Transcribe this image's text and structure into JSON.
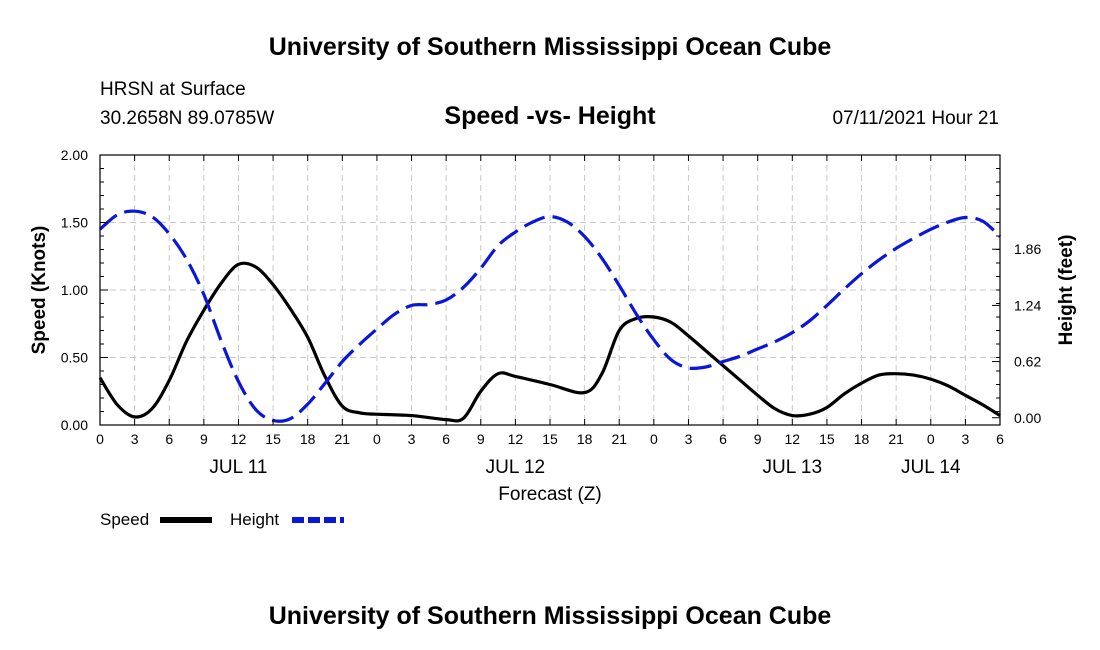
{
  "page": {
    "title": "University of Southern Mississippi Ocean Cube",
    "footer": "University of Southern Mississippi Ocean Cube"
  },
  "header": {
    "station": "HRSN at Surface",
    "coords": "30.2658N  89.0785W",
    "datetime": "07/11/2021 Hour 21"
  },
  "chart_data": {
    "type": "line",
    "title": "Speed -vs- Height",
    "xlabel": "Forecast (Z)",
    "ylabel_left": "Speed (Knots)",
    "ylabel_right": "Height (feet)",
    "x_unit": "hours since 07/11 00Z",
    "xlim": [
      0,
      78
    ],
    "ylim_left": [
      0,
      2.0
    ],
    "ylim_right": [
      -0.08,
      2.9
    ],
    "left_ticks": [
      "0.00",
      "0.50",
      "1.00",
      "1.50",
      "2.00"
    ],
    "right_ticks": [
      "0.00",
      "0.62",
      "1.24",
      "1.86"
    ],
    "x_tick_labels": [
      "0",
      "3",
      "6",
      "9",
      "12",
      "15",
      "18",
      "21",
      "0",
      "3",
      "6",
      "9",
      "12",
      "15",
      "18",
      "21",
      "0",
      "3",
      "6",
      "9",
      "12",
      "15",
      "18",
      "21",
      "0",
      "3",
      "6"
    ],
    "date_labels": [
      {
        "label": "JUL 11",
        "hour": 12
      },
      {
        "label": "JUL 12",
        "hour": 36
      },
      {
        "label": "JUL 13",
        "hour": 60
      },
      {
        "label": "JUL 14",
        "hour": 72
      }
    ],
    "grid": true,
    "series": [
      {
        "name": "Speed",
        "axis": "left",
        "color": "#000000",
        "dash": "solid",
        "x": [
          0,
          1.5,
          3,
          4.5,
          6,
          7.5,
          9,
          10.5,
          12,
          13.5,
          15,
          16.5,
          18,
          19.5,
          21,
          22.5,
          24,
          27,
          30,
          31.5,
          33,
          34.5,
          36,
          39,
          42,
          43.5,
          45,
          46.5,
          48,
          49.5,
          51,
          52.5,
          54,
          55.5,
          57,
          58.5,
          60,
          61.5,
          63,
          64.5,
          66,
          67.5,
          69,
          70.5,
          72,
          73.5,
          75,
          76.5,
          78
        ],
        "y": [
          0.35,
          0.15,
          0.06,
          0.12,
          0.33,
          0.62,
          0.85,
          1.05,
          1.19,
          1.17,
          1.04,
          0.86,
          0.65,
          0.36,
          0.14,
          0.09,
          0.08,
          0.07,
          0.04,
          0.05,
          0.25,
          0.38,
          0.36,
          0.3,
          0.24,
          0.38,
          0.7,
          0.79,
          0.8,
          0.76,
          0.66,
          0.55,
          0.44,
          0.33,
          0.22,
          0.12,
          0.07,
          0.08,
          0.13,
          0.23,
          0.31,
          0.37,
          0.38,
          0.37,
          0.34,
          0.29,
          0.22,
          0.15,
          0.07
        ]
      },
      {
        "name": "Height",
        "axis": "right",
        "color": "#0b17d8",
        "dash": "dashed",
        "x": [
          0,
          1.5,
          3,
          4.5,
          6,
          7.5,
          9,
          10.5,
          12,
          13.5,
          15,
          16.5,
          18,
          19.5,
          21,
          22.5,
          24,
          25.5,
          27,
          28.5,
          30,
          31.5,
          33,
          34.5,
          36,
          37.5,
          39,
          40.5,
          42,
          43.5,
          45,
          46.5,
          48,
          49.5,
          51,
          52.5,
          54,
          55.5,
          57,
          58.5,
          60,
          61.5,
          63,
          64.5,
          66,
          67.5,
          69,
          70.5,
          72,
          73.5,
          75,
          76.5,
          78
        ],
        "y": [
          2.08,
          2.24,
          2.28,
          2.22,
          2.03,
          1.75,
          1.36,
          0.85,
          0.4,
          0.09,
          -0.03,
          -0.01,
          0.15,
          0.38,
          0.62,
          0.81,
          0.98,
          1.14,
          1.24,
          1.25,
          1.3,
          1.44,
          1.65,
          1.9,
          2.05,
          2.16,
          2.22,
          2.16,
          2.0,
          1.76,
          1.46,
          1.14,
          0.86,
          0.64,
          0.55,
          0.56,
          0.62,
          0.68,
          0.76,
          0.84,
          0.94,
          1.07,
          1.24,
          1.42,
          1.59,
          1.74,
          1.87,
          1.98,
          2.08,
          2.16,
          2.21,
          2.17,
          2.0
        ]
      }
    ]
  }
}
